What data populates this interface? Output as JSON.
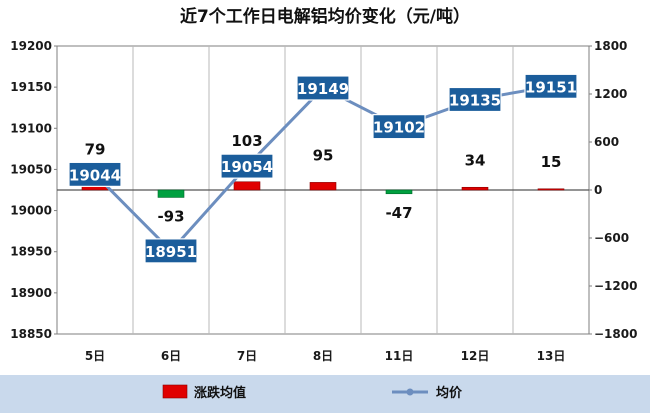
{
  "chart_data": {
    "type": "bar+line",
    "title": "近7个工作日电解铝均价变化（元/吨）",
    "categories": [
      "5日",
      "6日",
      "7日",
      "8日",
      "11日",
      "12日",
      "13日"
    ],
    "series": [
      {
        "name": "涨跌均值",
        "type": "bar",
        "axis": "right",
        "values": [
          79,
          -93,
          103,
          95,
          -47,
          34,
          15
        ]
      },
      {
        "name": "均价",
        "type": "line",
        "axis": "left",
        "values": [
          19044,
          18951,
          19054,
          19149,
          19102,
          19135,
          19151
        ]
      }
    ],
    "y_left": {
      "ticks": [
        18850,
        18900,
        18950,
        19000,
        19050,
        19100,
        19150,
        19200
      ],
      "range": [
        18850,
        19200
      ]
    },
    "y_right": {
      "ticks": [
        -1800,
        -1200,
        -600,
        0,
        600,
        1200,
        1800
      ],
      "range": [
        -1800,
        1800
      ]
    },
    "grid": "vertical",
    "legend_position": "bottom",
    "colors": {
      "up": "#e00000",
      "down": "#00a040",
      "line": "#6c8ebf",
      "label_box": "#1b5d9b",
      "legend_band": "#c9d9ec"
    }
  }
}
